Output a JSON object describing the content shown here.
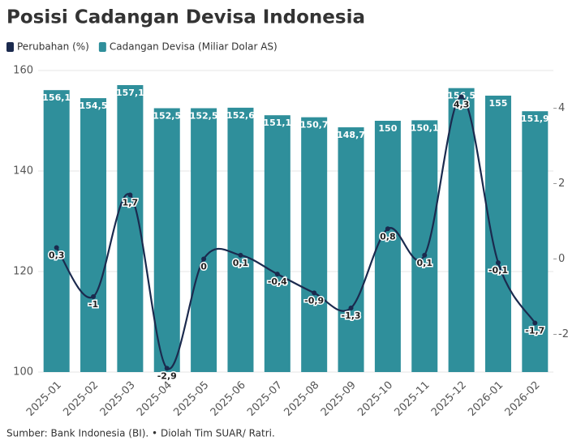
{
  "chart_data": {
    "type": "combo",
    "title": "Posisi Cadangan Devisa Indonesia",
    "categories": [
      "2025-01",
      "2025-02",
      "2025-03",
      "2025-04",
      "2025-05",
      "2025-06",
      "2025-07",
      "2025-08",
      "2025-09",
      "2025-10",
      "2025-11",
      "2025-12",
      "2026-01",
      "2026-02"
    ],
    "series": [
      {
        "name": "Perubahan (%)",
        "type": "line",
        "axis": "y2",
        "color": "#1b2a4e",
        "values": [
          0.3,
          -1,
          1.7,
          -2.9,
          0,
          0.1,
          -0.4,
          -0.9,
          -1.3,
          0.8,
          0.1,
          4.3,
          -0.1,
          -1.7
        ],
        "value_labels": [
          "0,3",
          "-1",
          "1,7",
          "-2,9",
          "0",
          "0,1",
          "-0,4",
          "-0,9",
          "-1,3",
          "0,8",
          "0,1",
          "4,3",
          "-0,1",
          "-1,7"
        ]
      },
      {
        "name": "Cadangan Devisa (Miliar Dolar AS)",
        "type": "bar",
        "color": "#2f8f9b",
        "values": [
          156.1,
          154.5,
          157.1,
          152.5,
          152.5,
          152.6,
          151.1,
          150.7,
          148.7,
          150,
          150.1,
          156.5,
          155,
          151.9
        ],
        "value_labels": [
          "156,1",
          "154,5",
          "157,1",
          "152,5",
          "152,5",
          "152,6",
          "151,1",
          "150,7",
          "148,7",
          "150",
          "150,1",
          "156,5",
          "155",
          "151,9"
        ]
      }
    ],
    "ylim": [
      100,
      160
    ],
    "yticks": [
      100,
      120,
      140,
      160
    ],
    "y2lim": [
      -3,
      5
    ],
    "y2ticks": [
      -2,
      0,
      2,
      4
    ],
    "grid": true,
    "source": "Sumber: Bank Indonesia (BI). • Diolah Tim SUAR/ Ratri."
  }
}
